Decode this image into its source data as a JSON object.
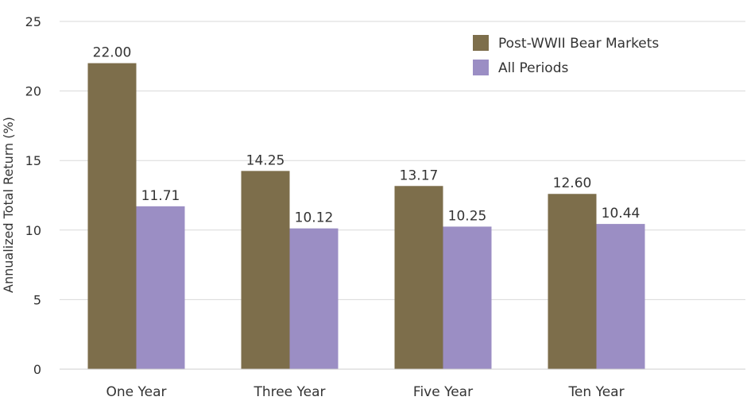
{
  "chart_data": {
    "type": "bar",
    "title": "",
    "xlabel": "",
    "ylabel": "Annualized Total Return (%)",
    "ylim": [
      0,
      25
    ],
    "yticks": [
      0,
      5,
      10,
      15,
      20,
      25
    ],
    "grid": true,
    "legend_position": "top-right",
    "categories": [
      "One Year",
      "Three Year",
      "Five Year",
      "Ten Year"
    ],
    "series": [
      {
        "name": "Post-WWII Bear Markets",
        "color": "#7d6e4b",
        "values": [
          22.0,
          14.25,
          13.17,
          12.6
        ],
        "labels": [
          "22.00",
          "14.25",
          "13.17",
          "12.60"
        ]
      },
      {
        "name": "All Periods",
        "color": "#9b8ec4",
        "values": [
          11.71,
          10.12,
          10.25,
          10.44
        ],
        "labels": [
          "11.71",
          "10.12",
          "10.25",
          "10.44"
        ]
      }
    ]
  }
}
